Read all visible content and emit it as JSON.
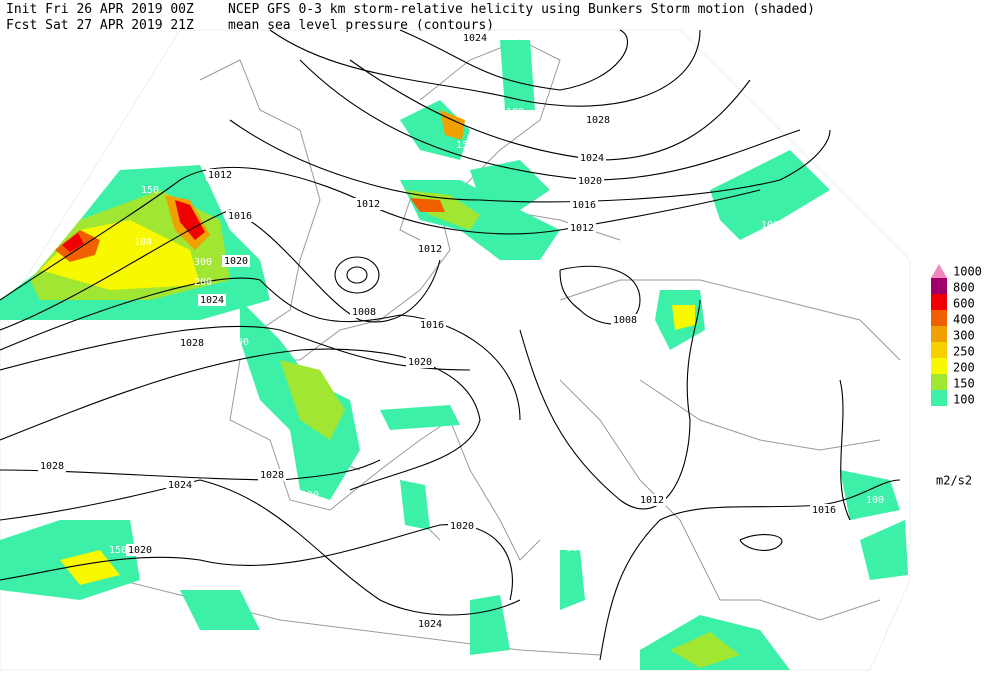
{
  "header": {
    "init": "Init  Fri 26 APR 2019 00Z",
    "forecast": "Fcst Sat 27 APR 2019 21Z",
    "title": "NCEP GFS 0-3 km storm-relative helicity using Bunkers Storm motion (shaded)",
    "subtitle": "mean sea level pressure (contours)"
  },
  "contour_labels": [
    1024,
    1028,
    1024,
    1020,
    1016,
    1012,
    1012,
    1016,
    1020,
    1024,
    1028,
    1012,
    1012,
    1008,
    1016,
    1020,
    1008,
    1028,
    1028,
    1024,
    1020,
    1020,
    1024,
    1012,
    1016
  ],
  "shade_labels": [
    100,
    100,
    150,
    150,
    100,
    300,
    200,
    100,
    150,
    100,
    100,
    100,
    100,
    150,
    100,
    100
  ],
  "legend": {
    "unit": "m2/s2",
    "levels": [
      {
        "value": 1000,
        "color": "#f088c0"
      },
      {
        "value": 800,
        "color": "#a0006a"
      },
      {
        "value": 600,
        "color": "#f00000"
      },
      {
        "value": 400,
        "color": "#f06000"
      },
      {
        "value": 300,
        "color": "#f0a000"
      },
      {
        "value": 250,
        "color": "#f8d000"
      },
      {
        "value": 200,
        "color": "#f8f800"
      },
      {
        "value": 150,
        "color": "#a0e632"
      },
      {
        "value": 100,
        "color": "#3cf0a8"
      }
    ]
  }
}
